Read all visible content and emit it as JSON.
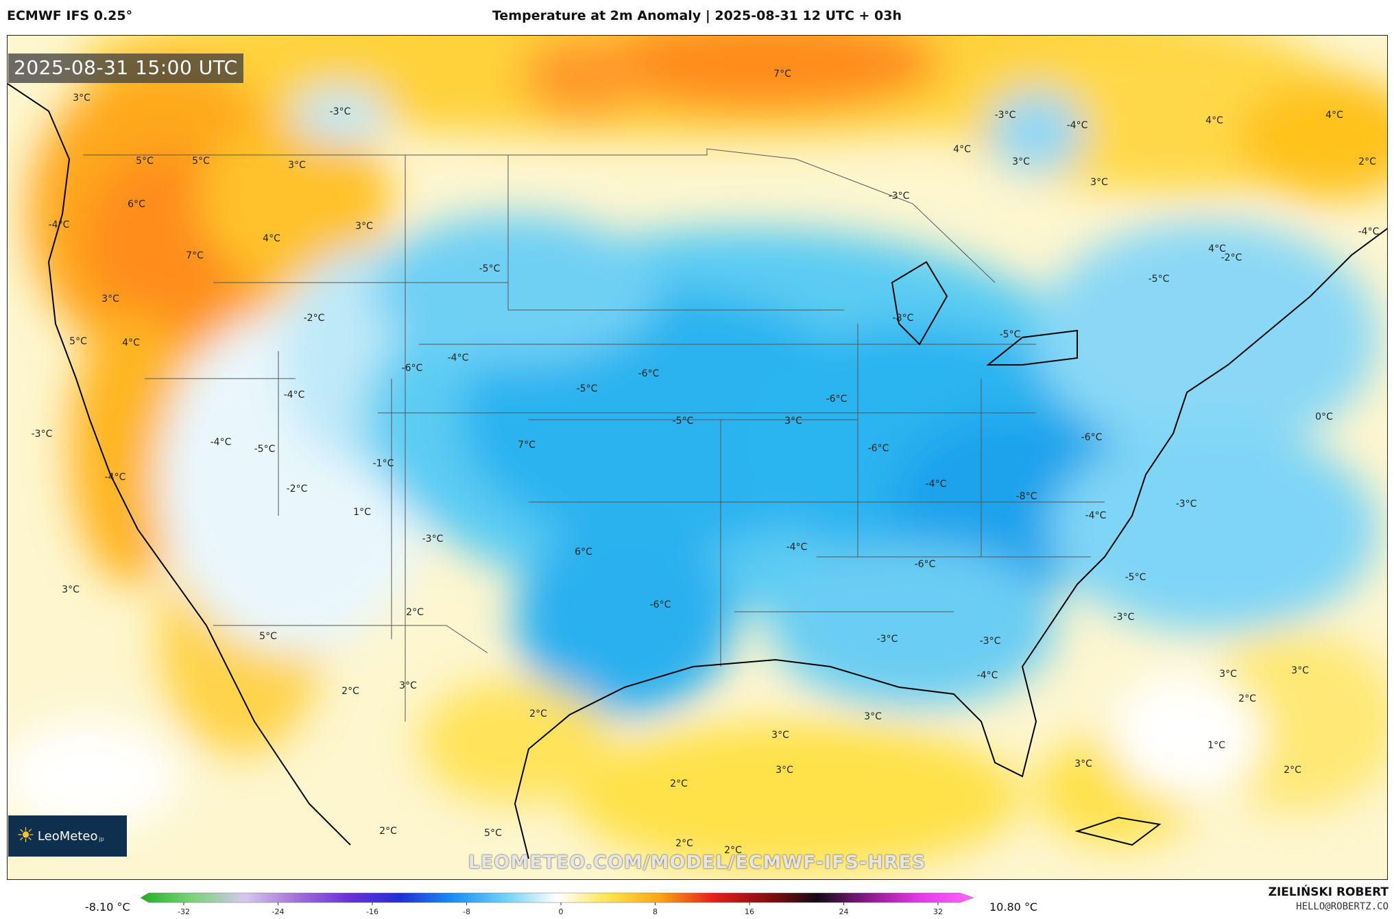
{
  "header": {
    "model": "ECMWF IFS 0.25°",
    "title": "Temperature at 2m Anomaly | 2025-08-31 12 UTC + 03h"
  },
  "timestamp": "2025-08-31 15:00 UTC",
  "logo": {
    "name": "LeoMeteo",
    "suffix": "jp"
  },
  "watermark": "LEOMETEO.COM/MODEL/ECMWF-IFS-HRES",
  "colorbar": {
    "min_label": "-8.10 °C",
    "max_label": "10.80 °C",
    "ticks": [
      "-32",
      "-24",
      "-16",
      "-8",
      "0",
      "8",
      "16",
      "24",
      "32"
    ],
    "stops": [
      "#22b022",
      "#7ad37a",
      "#d6c7ef",
      "#a271d8",
      "#6a2fd8",
      "#1f2fd6",
      "#1a8ef2",
      "#6fd0f7",
      "#ffffff",
      "#ffe34d",
      "#f7a313",
      "#e81d1d",
      "#8a0f0f",
      "#140a14",
      "#8e1a8e",
      "#e83ae8",
      "#ff66ff"
    ]
  },
  "footer": {
    "author": "ZIELIŃSKI ROBERT",
    "email": "HELLO@ROBERTZ.CO"
  },
  "map_labels": [
    {
      "text": "3°C"
    },
    {
      "text": "-3°C"
    },
    {
      "text": "7°C"
    },
    {
      "text": "-3°C"
    },
    {
      "text": "-4°C"
    },
    {
      "text": "4°C"
    },
    {
      "text": "4°C"
    },
    {
      "text": "5°C"
    },
    {
      "text": "5°C"
    },
    {
      "text": "3°C"
    },
    {
      "text": "6°C"
    },
    {
      "text": "4°C"
    },
    {
      "text": "3°C"
    },
    {
      "text": "3°C"
    },
    {
      "text": "-3°C"
    },
    {
      "text": "2°C"
    },
    {
      "text": "3°C"
    },
    {
      "text": "-4°C"
    },
    {
      "text": "4°C"
    },
    {
      "text": "7°C"
    },
    {
      "text": "-5°C"
    },
    {
      "text": "-2°C"
    },
    {
      "text": "3°C"
    },
    {
      "text": "4°C"
    },
    {
      "text": "-2°C"
    },
    {
      "text": "-4°C"
    },
    {
      "text": "-8°C"
    },
    {
      "text": "-5°C"
    },
    {
      "text": "-5°C"
    },
    {
      "text": "5°C"
    },
    {
      "text": "4°C"
    },
    {
      "text": "-4°C"
    },
    {
      "text": "-6°C"
    },
    {
      "text": "-6°C"
    },
    {
      "text": "-5°C"
    },
    {
      "text": "-4°C"
    },
    {
      "text": "-6°C"
    },
    {
      "text": "-5°C"
    },
    {
      "text": "3°C"
    },
    {
      "text": "0°C"
    },
    {
      "text": "-3°C"
    },
    {
      "text": "-4°C"
    },
    {
      "text": "-5°C"
    },
    {
      "text": "-6°C"
    },
    {
      "text": "-6°C"
    },
    {
      "text": "-4°C"
    },
    {
      "text": "7°C"
    },
    {
      "text": "-4°C"
    },
    {
      "text": "-1°C"
    },
    {
      "text": "-2°C"
    },
    {
      "text": "-8°C"
    },
    {
      "text": "-3°C"
    },
    {
      "text": "1°C"
    },
    {
      "text": "-4°C"
    },
    {
      "text": "-3°C"
    },
    {
      "text": "-6°C"
    },
    {
      "text": "6°C"
    },
    {
      "text": "-4°C"
    },
    {
      "text": "-5°C"
    },
    {
      "text": "3°C"
    },
    {
      "text": "2°C"
    },
    {
      "text": "-3°C"
    },
    {
      "text": "-6°C"
    },
    {
      "text": "-3°C"
    },
    {
      "text": "-3°C"
    },
    {
      "text": "5°C"
    },
    {
      "text": "-4°C"
    },
    {
      "text": "3°C"
    },
    {
      "text": "3°C"
    },
    {
      "text": "2°C"
    },
    {
      "text": "2°C"
    },
    {
      "text": "3°C"
    },
    {
      "text": "3°C"
    },
    {
      "text": "2°C"
    },
    {
      "text": "3°C"
    },
    {
      "text": "1°C"
    },
    {
      "text": "3°C"
    },
    {
      "text": "3°C"
    },
    {
      "text": "2°C"
    },
    {
      "text": "2°C"
    },
    {
      "text": "5°C"
    },
    {
      "text": "2°C"
    },
    {
      "text": "2°C"
    },
    {
      "text": "2°C"
    }
  ]
}
